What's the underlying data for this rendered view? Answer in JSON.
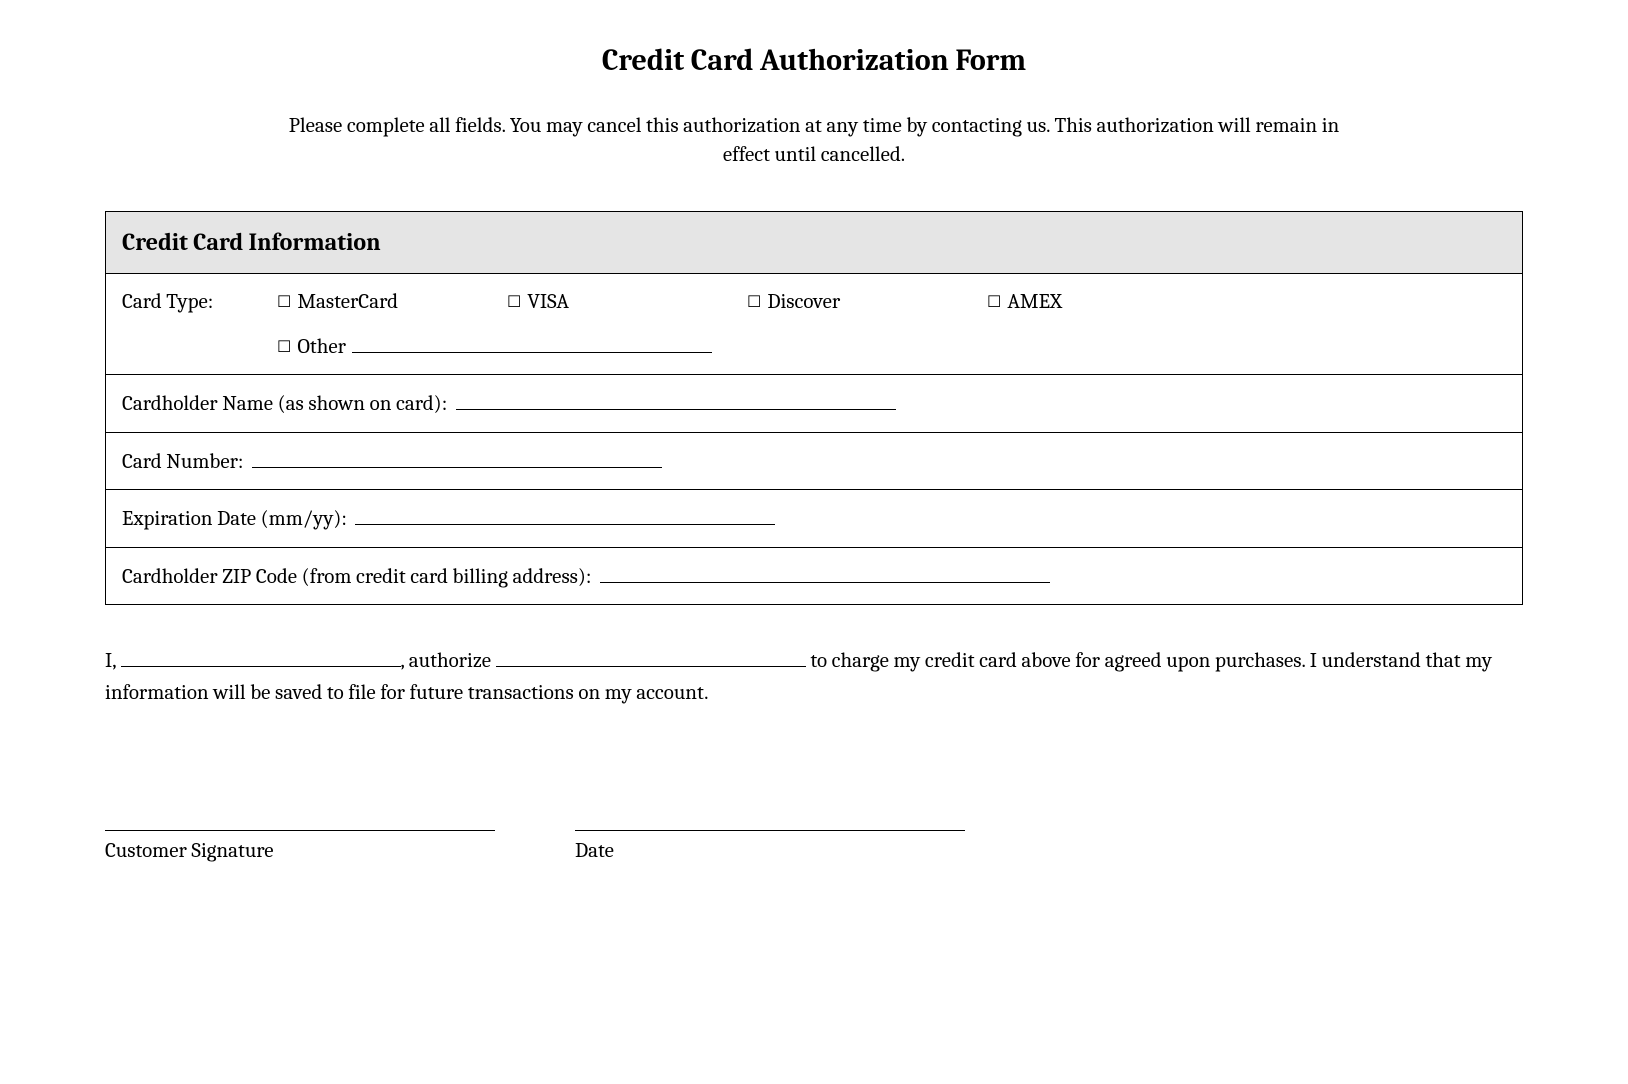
{
  "title": "Credit Card Authorization Form",
  "intro": "Please complete all fields. You may cancel this authorization at any time by contacting us. This authorization will remain in effect until cancelled.",
  "section_header": "Credit Card Information",
  "card_type_label": "Card Type:",
  "options": {
    "mastercard": "MasterCard",
    "visa": "VISA",
    "discover": "Discover",
    "amex": "AMEX",
    "other": "Other"
  },
  "fields": {
    "cardholder_name": "Cardholder Name (as shown on card):",
    "card_number": "Card Number:",
    "expiration": "Expiration Date (mm/yy):",
    "zip": "Cardholder ZIP Code (from credit card billing address):"
  },
  "auth": {
    "prefix": "I,",
    "mid1": ", authorize",
    "mid2": "to charge my credit card above for agreed upon purchases. I understand that my information will be saved to file for future transactions on my account."
  },
  "signature_label": "Customer Signature",
  "date_label": "Date",
  "checkbox_glyph": "☐",
  "colors": {
    "background": "#ffffff",
    "text": "#000000",
    "header_bg": "#e5e5e5",
    "border": "#000000"
  },
  "blank_widths": {
    "cardholder_name": 440,
    "card_number": 410,
    "expiration": 420,
    "zip": 450,
    "auth_name": 280,
    "auth_merchant": 310
  }
}
